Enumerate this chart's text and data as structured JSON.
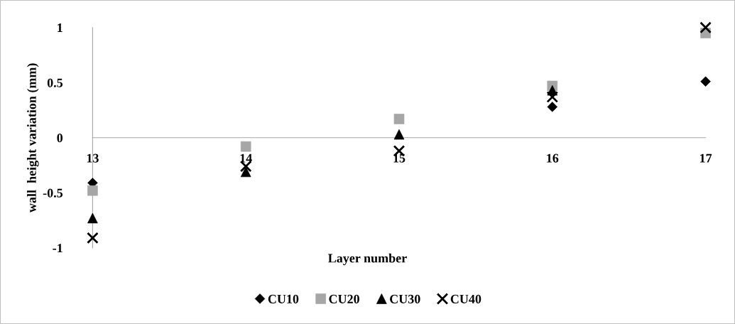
{
  "chart_data": {
    "type": "scatter",
    "xlabel": "Layer number",
    "ylabel": "wall  height variation (mm)",
    "categories": [
      "13",
      "14",
      "15",
      "16",
      "17"
    ],
    "ylim": [
      -1,
      1
    ],
    "yticks": [
      {
        "value": -1,
        "label": "-1"
      },
      {
        "value": -0.5,
        "label": "-0.5"
      },
      0,
      0.5,
      1
    ],
    "grid": false,
    "legend": "bottom",
    "series": [
      {
        "name": "CU10",
        "color": "#000000",
        "marker": "diamond",
        "values": [
          -0.41,
          null,
          null,
          0.28,
          0.51
        ]
      },
      {
        "name": "CU20",
        "color": "#a6a6a6",
        "marker": "square",
        "values": [
          -0.48,
          -0.08,
          0.17,
          0.47,
          0.95
        ]
      },
      {
        "name": "CU30",
        "color": "#000000",
        "marker": "triangle",
        "values": [
          -0.73,
          -0.31,
          0.03,
          0.43,
          null
        ]
      },
      {
        "name": "CU40",
        "color": "#000000",
        "marker": "cross",
        "values": [
          -0.91,
          -0.26,
          -0.12,
          0.37,
          1.0
        ]
      }
    ]
  }
}
